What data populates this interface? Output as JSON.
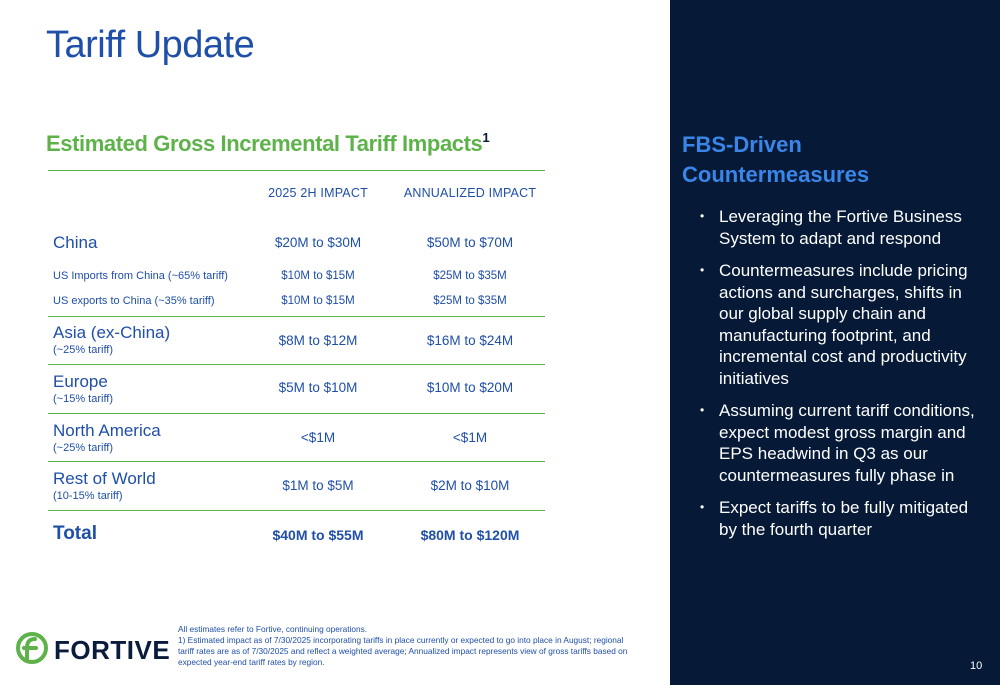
{
  "title": "Tariff Update",
  "subtitle": "Estimated Gross Incremental Tariff Impacts",
  "subtitle_footnote": "1",
  "table": {
    "headers": {
      "h2": "2025 2H IMPACT",
      "annualized": "ANNUALIZED IMPACT"
    },
    "china": {
      "label": "China",
      "h2": "$20M to $30M",
      "annualized": "$50M to $70M"
    },
    "us_imports": {
      "label": "US Imports from China (~65% tariff)",
      "h2": "$10M to $15M",
      "annualized": "$25M to $35M"
    },
    "us_exports": {
      "label": "US exports to China (~35% tariff)",
      "h2": "$10M to $15M",
      "annualized": "$25M to $35M"
    },
    "asia": {
      "label": "Asia (ex-China)",
      "note": "(~25% tariff)",
      "h2": "$8M to $12M",
      "annualized": "$16M to $24M"
    },
    "europe": {
      "label": "Europe",
      "note": "(~15% tariff)",
      "h2": "$5M to $10M",
      "annualized": "$10M to $20M"
    },
    "north_america": {
      "label": "North America",
      "note": "(~25% tariff)",
      "h2": "<$1M",
      "annualized": "<$1M"
    },
    "rest_of_world": {
      "label": "Rest of World",
      "note": "(10-15% tariff)",
      "h2": "$1M to $5M",
      "annualized": "$2M to $10M"
    },
    "total": {
      "label": "Total",
      "h2": "$40M to $55M",
      "annualized": "$80M to $120M"
    }
  },
  "right_panel": {
    "title": "FBS-Driven Countermeasures",
    "bullets": [
      "Leveraging the Fortive Business System to adapt and respond",
      "Countermeasures include pricing actions and surcharges, shifts in our global supply chain and manufacturing footprint, and incremental cost and productivity initiatives",
      "Assuming current tariff conditions, expect modest gross margin and EPS headwind in Q3 as our countermeasures fully phase in",
      "Expect tariffs to be fully mitigated by the fourth quarter"
    ]
  },
  "logo": {
    "text": "FORTIVE",
    "icon": "fortive-logo-icon"
  },
  "footnote": {
    "line1": "All estimates refer to Fortive, continuing operations.",
    "line2": "1) Estimated impact as of 7/30/2025 incorporating tariffs in place currently or expected to go into place in August; regional tariff rates are as of 7/30/2025 and reflect a weighted average; Annualized impact represents view of gross tariffs based on expected year-end tariff rates by region."
  },
  "page_number": "10",
  "colors": {
    "primary_blue": "#1f4fa8",
    "green": "#5eb24a",
    "navy": "#061a38",
    "light_blue": "#3a86e8"
  }
}
